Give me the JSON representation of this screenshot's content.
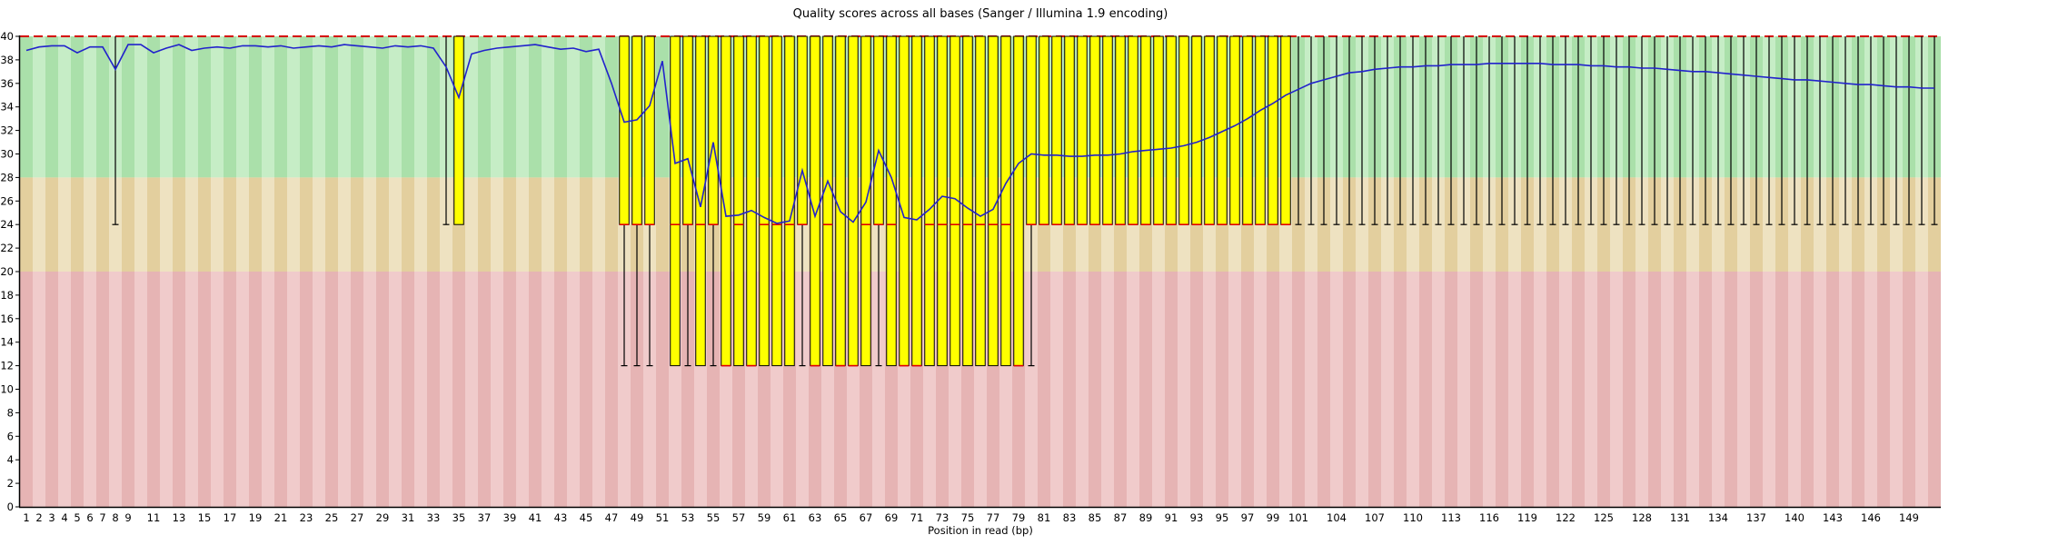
{
  "chart_data": {
    "type": "boxplot",
    "title": "Quality scores across all bases (Sanger / Illumina 1.9 encoding)",
    "xlabel": "Position in read (bp)",
    "ylim": [
      0,
      40
    ],
    "y_ticks": [
      0,
      2,
      4,
      6,
      8,
      10,
      12,
      14,
      16,
      18,
      20,
      22,
      24,
      26,
      28,
      30,
      32,
      34,
      36,
      38,
      40
    ],
    "n_positions": 151,
    "x_tick_positions": [
      1,
      2,
      3,
      4,
      5,
      6,
      7,
      8,
      9,
      11,
      13,
      15,
      17,
      19,
      21,
      23,
      25,
      27,
      29,
      31,
      33,
      35,
      37,
      39,
      41,
      43,
      45,
      47,
      49,
      51,
      53,
      55,
      57,
      59,
      61,
      63,
      65,
      67,
      69,
      71,
      73,
      75,
      77,
      79,
      81,
      83,
      85,
      87,
      89,
      91,
      93,
      95,
      97,
      99,
      101,
      104,
      107,
      110,
      113,
      116,
      119,
      122,
      125,
      128,
      131,
      134,
      137,
      140,
      143,
      146,
      149
    ],
    "legend_position": "none",
    "grid": false,
    "threshold_line": {
      "value": 40,
      "style": "dashed",
      "color": "#d40000"
    },
    "bands": [
      {
        "name": "good-quality-band",
        "from": 28,
        "to": 40,
        "color_a": "#aae0aa",
        "color_b": "#c6edc6"
      },
      {
        "name": "ok-quality-band",
        "from": 20,
        "to": 28,
        "color_a": "#e3cf9e",
        "color_b": "#eee2c1"
      },
      {
        "name": "poor-quality-band",
        "from": 0,
        "to": 20,
        "color_a": "#e6b4b4",
        "color_b": "#f0cbcb"
      }
    ],
    "series": {
      "mean": [
        38.8,
        39.1,
        39.2,
        39.2,
        38.6,
        39.1,
        39.1,
        37.2,
        39.3,
        39.3,
        38.6,
        39.0,
        39.3,
        38.8,
        39.0,
        39.1,
        39.0,
        39.2,
        39.2,
        39.1,
        39.2,
        39.0,
        39.1,
        39.2,
        39.1,
        39.3,
        39.2,
        39.1,
        39.0,
        39.2,
        39.1,
        39.2,
        39.0,
        37.4,
        34.8,
        38.5,
        38.8,
        39.0,
        39.1,
        39.2,
        39.3,
        39.1,
        38.9,
        39.0,
        38.7,
        38.9,
        36.0,
        32.7,
        32.9,
        34.1,
        37.9,
        29.2,
        29.6,
        25.5,
        31.0,
        24.7,
        24.8,
        25.2,
        24.6,
        24.1,
        24.3,
        28.6,
        24.7,
        27.7,
        25.1,
        24.2,
        25.9,
        30.3,
        28.0,
        24.6,
        24.4,
        25.3,
        26.4,
        26.2,
        25.4,
        24.7,
        25.3,
        27.5,
        29.2,
        30.0,
        29.9,
        29.9,
        29.8,
        29.8,
        29.9,
        29.9,
        30.0,
        30.2,
        30.3,
        30.4,
        30.5,
        30.7,
        31.0,
        31.4,
        31.9,
        32.4,
        33.0,
        33.7,
        34.3,
        35.0,
        35.5,
        36.0,
        36.3,
        36.6,
        36.9,
        37.0,
        37.2,
        37.3,
        37.4,
        37.4,
        37.5,
        37.5,
        37.6,
        37.6,
        37.6,
        37.7,
        37.7,
        37.7,
        37.7,
        37.7,
        37.6,
        37.6,
        37.6,
        37.5,
        37.5,
        37.4,
        37.4,
        37.3,
        37.3,
        37.2,
        37.1,
        37.0,
        37.0,
        36.9,
        36.8,
        36.7,
        36.6,
        36.5,
        36.4,
        36.3,
        36.3,
        36.2,
        36.1,
        36.0,
        35.9,
        35.9,
        35.8,
        35.7,
        35.7,
        35.6,
        35.6
      ],
      "q3": {
        "default": 40,
        "ranges": []
      },
      "p90": {
        "default": 40,
        "ranges": []
      },
      "q1": {
        "default": 40,
        "ranges": [
          [
            35,
            35,
            24
          ],
          [
            48,
            50,
            24
          ],
          [
            52,
            52,
            12
          ],
          [
            53,
            53,
            24
          ],
          [
            54,
            54,
            12
          ],
          [
            55,
            55,
            24
          ],
          [
            56,
            61,
            12
          ],
          [
            62,
            62,
            24
          ],
          [
            63,
            67,
            12
          ],
          [
            68,
            68,
            24
          ],
          [
            69,
            79,
            12
          ],
          [
            80,
            100,
            24
          ]
        ]
      },
      "median": {
        "default": 40,
        "ranges": [
          [
            48,
            50,
            24
          ],
          [
            52,
            55,
            24
          ],
          [
            56,
            56,
            12
          ],
          [
            57,
            57,
            24
          ],
          [
            58,
            58,
            12
          ],
          [
            59,
            62,
            24
          ],
          [
            63,
            63,
            12
          ],
          [
            64,
            64,
            24
          ],
          [
            65,
            66,
            12
          ],
          [
            67,
            69,
            24
          ],
          [
            70,
            71,
            12
          ],
          [
            72,
            78,
            24
          ],
          [
            79,
            79,
            12
          ],
          [
            80,
            100,
            24
          ]
        ]
      },
      "p10": {
        "default": 40,
        "ranges": [
          [
            8,
            8,
            24
          ],
          [
            34,
            35,
            24
          ],
          [
            48,
            50,
            12
          ],
          [
            52,
            80,
            12
          ],
          [
            81,
            151,
            24
          ]
        ]
      }
    },
    "colors": {
      "mean_line": "#2222cc",
      "box_fill": "#ffff00",
      "box_border": "#000000",
      "median_line": "#e00000",
      "whisker": "#000000",
      "axis": "#000000",
      "tick_text": "#000000"
    }
  }
}
